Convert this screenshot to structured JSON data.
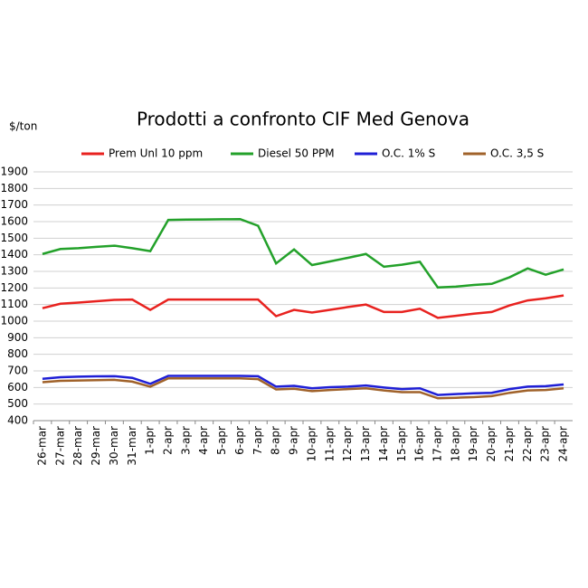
{
  "chart_data": {
    "type": "line",
    "title": "Prodotti a confronto CIF Med Genova",
    "y_label": "$/ton",
    "categories": [
      "26-mar",
      "27-mar",
      "28-mar",
      "29-mar",
      "30-mar",
      "31-mar",
      "1-apr",
      "2-apr",
      "3-apr",
      "4-apr",
      "5-apr",
      "6-apr",
      "7-apr",
      "8-apr",
      "9-apr",
      "10-apr",
      "11-apr",
      "12-apr",
      "13-apr",
      "14-apr",
      "15-apr",
      "16-apr",
      "17-apr",
      "18-apr",
      "19-apr",
      "20-apr",
      "21-apr",
      "22-apr",
      "23-apr",
      "24-apr"
    ],
    "series": [
      {
        "name": "Prem Unl 10 ppm",
        "color": "#e8221f",
        "values": [
          1078,
          1105,
          1112,
          1120,
          1128,
          1130,
          1068,
          1130,
          1130,
          1130,
          1130,
          1130,
          1130,
          1030,
          1068,
          1052,
          1068,
          1085,
          1100,
          1055,
          1055,
          1075,
          1020,
          1032,
          1045,
          1055,
          1095,
          1125,
          1138,
          1155
        ]
      },
      {
        "name": "Diesel 50 PPM",
        "color": "#23a12a",
        "values": [
          1405,
          1435,
          1440,
          1448,
          1455,
          1440,
          1422,
          1610,
          1612,
          1613,
          1614,
          1615,
          1575,
          1348,
          1432,
          1338,
          1360,
          1382,
          1405,
          1328,
          1340,
          1358,
          1203,
          1208,
          1218,
          1225,
          1265,
          1318,
          1280,
          1312
        ]
      },
      {
        "name": "O.C. 1% S",
        "color": "#1f1fd6",
        "values": [
          652,
          662,
          665,
          667,
          668,
          658,
          622,
          670,
          670,
          670,
          670,
          670,
          668,
          605,
          610,
          595,
          602,
          605,
          612,
          600,
          590,
          595,
          555,
          560,
          565,
          568,
          590,
          605,
          608,
          618
        ]
      },
      {
        "name": "O.C. 3,5 S",
        "color": "#a0622a",
        "values": [
          632,
          640,
          642,
          644,
          646,
          635,
          605,
          655,
          655,
          655,
          655,
          655,
          650,
          588,
          592,
          578,
          585,
          590,
          595,
          582,
          572,
          572,
          535,
          538,
          542,
          548,
          568,
          582,
          585,
          595
        ]
      }
    ],
    "ylim": [
      400,
      1900
    ],
    "yticks": [
      400,
      500,
      600,
      700,
      800,
      900,
      1000,
      1100,
      1200,
      1300,
      1400,
      1500,
      1600,
      1700,
      1800,
      1900
    ],
    "grid": true
  }
}
